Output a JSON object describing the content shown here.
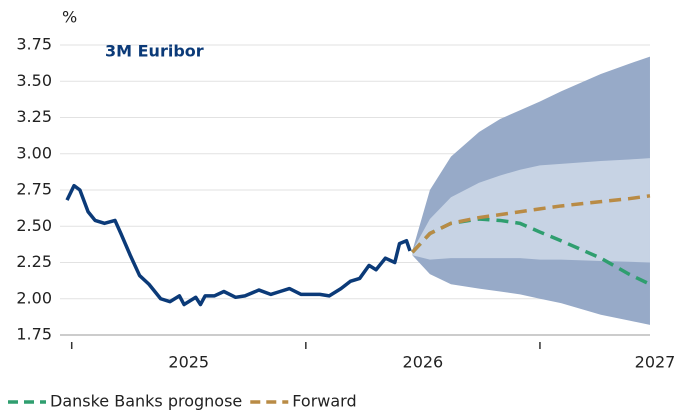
{
  "chart_data": {
    "type": "line",
    "title": "3M Euribor",
    "ylabel": "%",
    "xlim": [
      2024.45,
      2027
    ],
    "xticks": [
      2025,
      2026,
      2027
    ],
    "xminor_ticks": [
      2024.5,
      2025.5,
      2026.5
    ],
    "ylim": [
      1.75,
      3.75
    ],
    "yticks": [
      1.75,
      {
        "value": 2,
        "label": "2.00"
      },
      2.25,
      {
        "value": 2.5,
        "label": "2.50"
      },
      2.75,
      {
        "value": 3,
        "label": "3.00"
      },
      3.25,
      {
        "value": 3.5,
        "label": "3.50"
      },
      3.75
    ],
    "grid": true,
    "legend": "bottom",
    "bands": [
      {
        "color": "#97aac8",
        "x": [
          2025.955,
          2026.03,
          2026.12,
          2026.24,
          2026.33,
          2026.415,
          2026.5,
          2026.59,
          2026.76,
          2026.88,
          2026.97
        ],
        "upper": [
          2.33,
          2.75,
          2.98,
          3.15,
          3.24,
          3.3,
          3.36,
          3.43,
          3.55,
          3.62,
          3.67
        ],
        "lower": [
          2.3,
          2.17,
          2.1,
          2.07,
          2.05,
          2.03,
          2.0,
          1.97,
          1.89,
          1.85,
          1.82
        ]
      },
      {
        "color": "#c7d3e4",
        "x": [
          2025.955,
          2026.03,
          2026.12,
          2026.24,
          2026.33,
          2026.415,
          2026.5,
          2026.59,
          2026.76,
          2026.88,
          2026.97
        ],
        "upper": [
          2.33,
          2.55,
          2.7,
          2.8,
          2.85,
          2.89,
          2.92,
          2.93,
          2.95,
          2.96,
          2.97
        ],
        "lower": [
          2.3,
          2.27,
          2.28,
          2.28,
          2.28,
          2.28,
          2.27,
          2.27,
          2.26,
          2.255,
          2.25
        ]
      }
    ],
    "series": [
      {
        "color": "#0b3a78",
        "dash": false,
        "x": [
          2024.48,
          2024.51,
          2024.535,
          2024.57,
          2024.6,
          2024.64,
          2024.685,
          2024.71,
          2024.75,
          2024.79,
          2024.83,
          2024.88,
          2024.92,
          2024.96,
          2024.98,
          2025.03,
          2025.05,
          2025.07,
          2025.11,
          2025.15,
          2025.2,
          2025.24,
          2025.3,
          2025.35,
          2025.39,
          2025.43,
          2025.48,
          2025.52,
          2025.56,
          2025.6,
          2025.65,
          2025.69,
          2025.73,
          2025.77,
          2025.8,
          2025.84,
          2025.88,
          2025.9,
          2025.93,
          2025.945
        ],
        "values": [
          2.68,
          2.78,
          2.75,
          2.6,
          2.54,
          2.52,
          2.54,
          2.45,
          2.3,
          2.16,
          2.1,
          2.0,
          1.98,
          2.02,
          1.96,
          2.01,
          1.96,
          2.02,
          2.02,
          2.05,
          2.01,
          2.02,
          2.06,
          2.03,
          2.05,
          2.07,
          2.03,
          2.03,
          2.03,
          2.02,
          2.07,
          2.12,
          2.14,
          2.23,
          2.2,
          2.28,
          2.25,
          2.38,
          2.4,
          2.33
        ]
      },
      {
        "name": "Danske Banks prognose",
        "color": "#2f9e6f",
        "dash": true,
        "x": [
          2025.955,
          2026.03,
          2026.12,
          2026.24,
          2026.33,
          2026.415,
          2026.5,
          2026.59,
          2026.76,
          2026.88,
          2026.97
        ],
        "values": [
          2.32,
          2.45,
          2.52,
          2.55,
          2.54,
          2.52,
          2.46,
          2.4,
          2.28,
          2.17,
          2.1
        ]
      },
      {
        "name": "Forward",
        "color": "#b98b45",
        "dash": true,
        "x": [
          2025.955,
          2026.03,
          2026.12,
          2026.24,
          2026.33,
          2026.415,
          2026.5,
          2026.59,
          2026.76,
          2026.88,
          2026.97
        ],
        "values": [
          2.32,
          2.45,
          2.52,
          2.56,
          2.58,
          2.6,
          2.62,
          2.64,
          2.67,
          2.69,
          2.71
        ]
      }
    ]
  }
}
